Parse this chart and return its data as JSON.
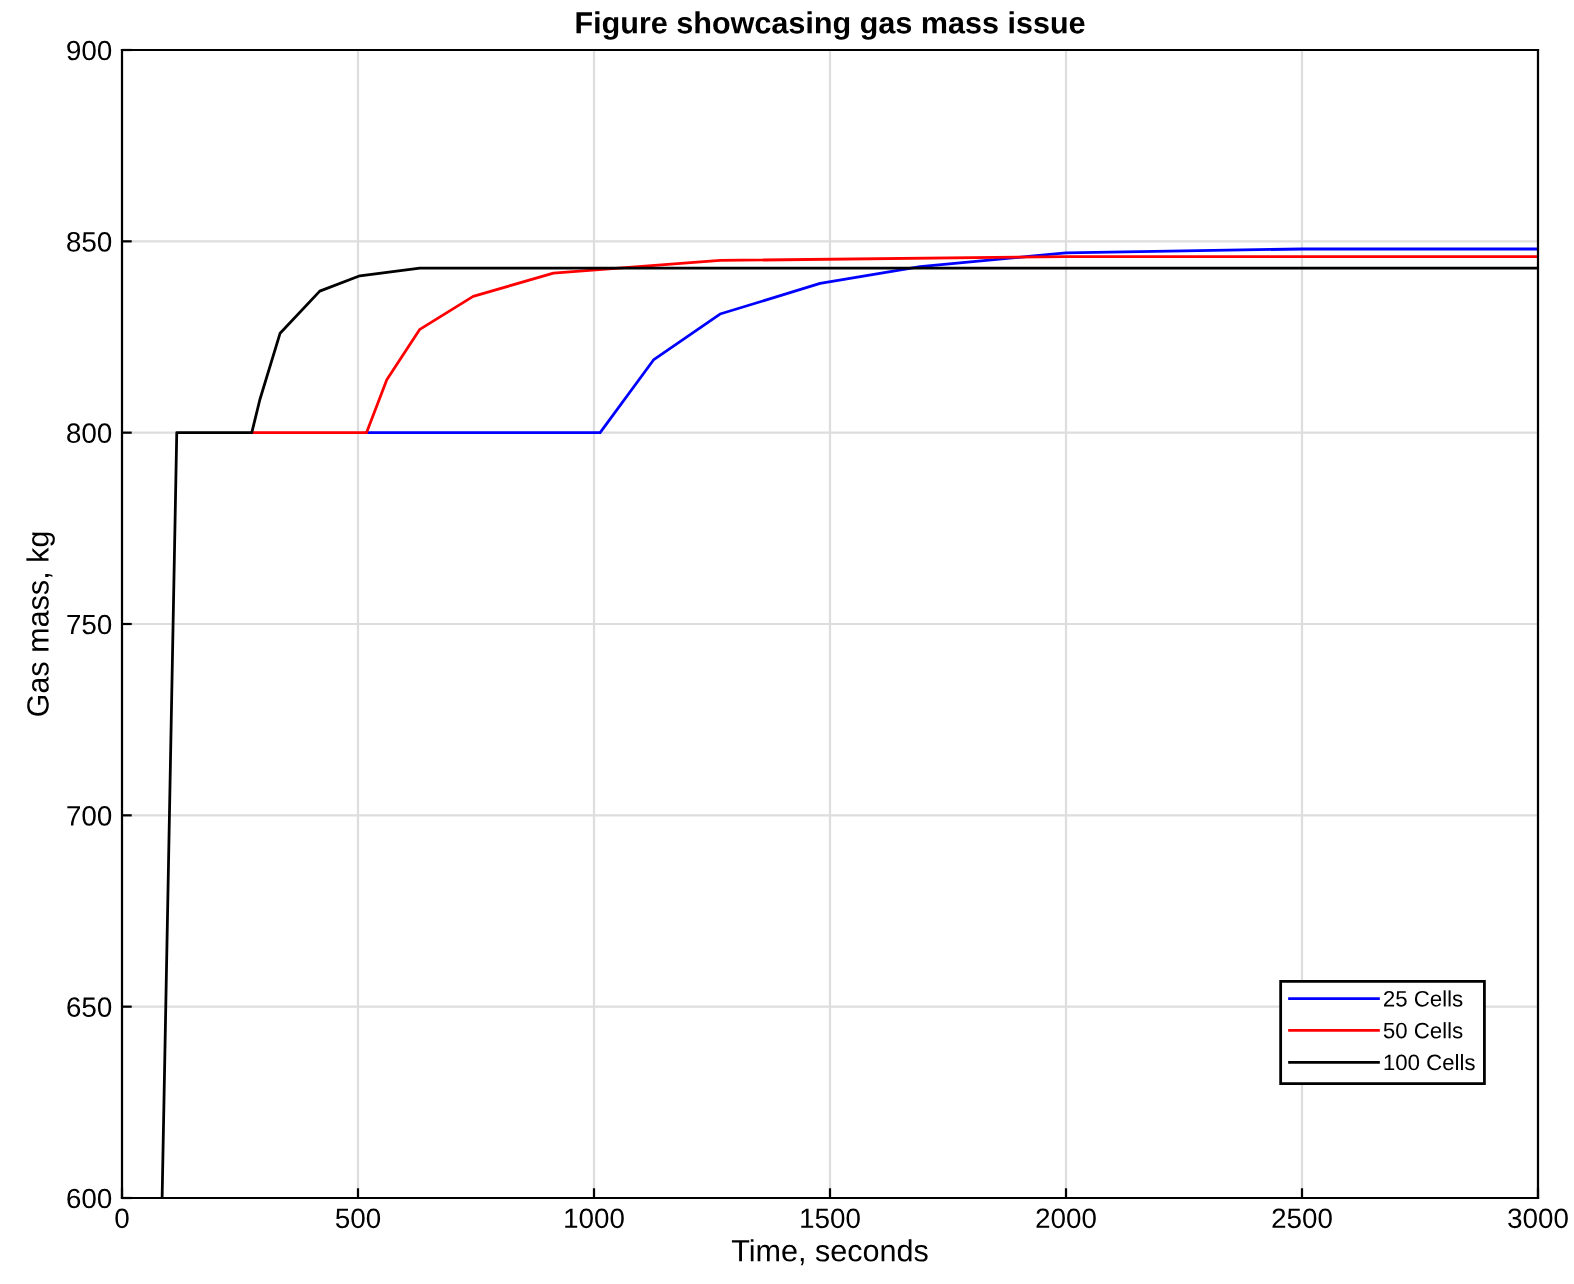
{
  "chart_data": {
    "type": "line",
    "title": "Figure showcasing gas mass issue",
    "xlabel": "Time, seconds",
    "ylabel": "Gas mass, kg",
    "xlim": [
      0,
      3000
    ],
    "xticks": [
      0,
      500,
      1000,
      1500,
      2000,
      2500,
      3000
    ],
    "ylim": [
      600,
      900
    ],
    "yticks": [
      600,
      650,
      700,
      750,
      800,
      850,
      900
    ],
    "grid": true,
    "legend": "bottom right",
    "series": [
      {
        "name": "25 Cells",
        "color": "#0000ff",
        "x": [
          518,
          1013,
          1126,
          1267,
          1479,
          1691,
          2000,
          2500,
          3000
        ],
        "values": [
          800,
          800,
          819,
          831,
          839,
          843.4,
          847,
          848,
          848
        ]
      },
      {
        "name": "50 Cells",
        "color": "#ff0000",
        "x": [
          275,
          518,
          561,
          631,
          744,
          914,
          1267,
          2000,
          3000
        ],
        "values": [
          800,
          800,
          813.8,
          827,
          835.6,
          841.7,
          845,
          846,
          846
        ]
      },
      {
        "name": "100 Cells",
        "color": "#000000",
        "x": [
          85,
          116,
          275,
          292,
          335,
          419,
          504,
          631,
          1000,
          3000
        ],
        "values": [
          600,
          800,
          800,
          808.6,
          826,
          837,
          841,
          843,
          843,
          843
        ]
      }
    ]
  }
}
